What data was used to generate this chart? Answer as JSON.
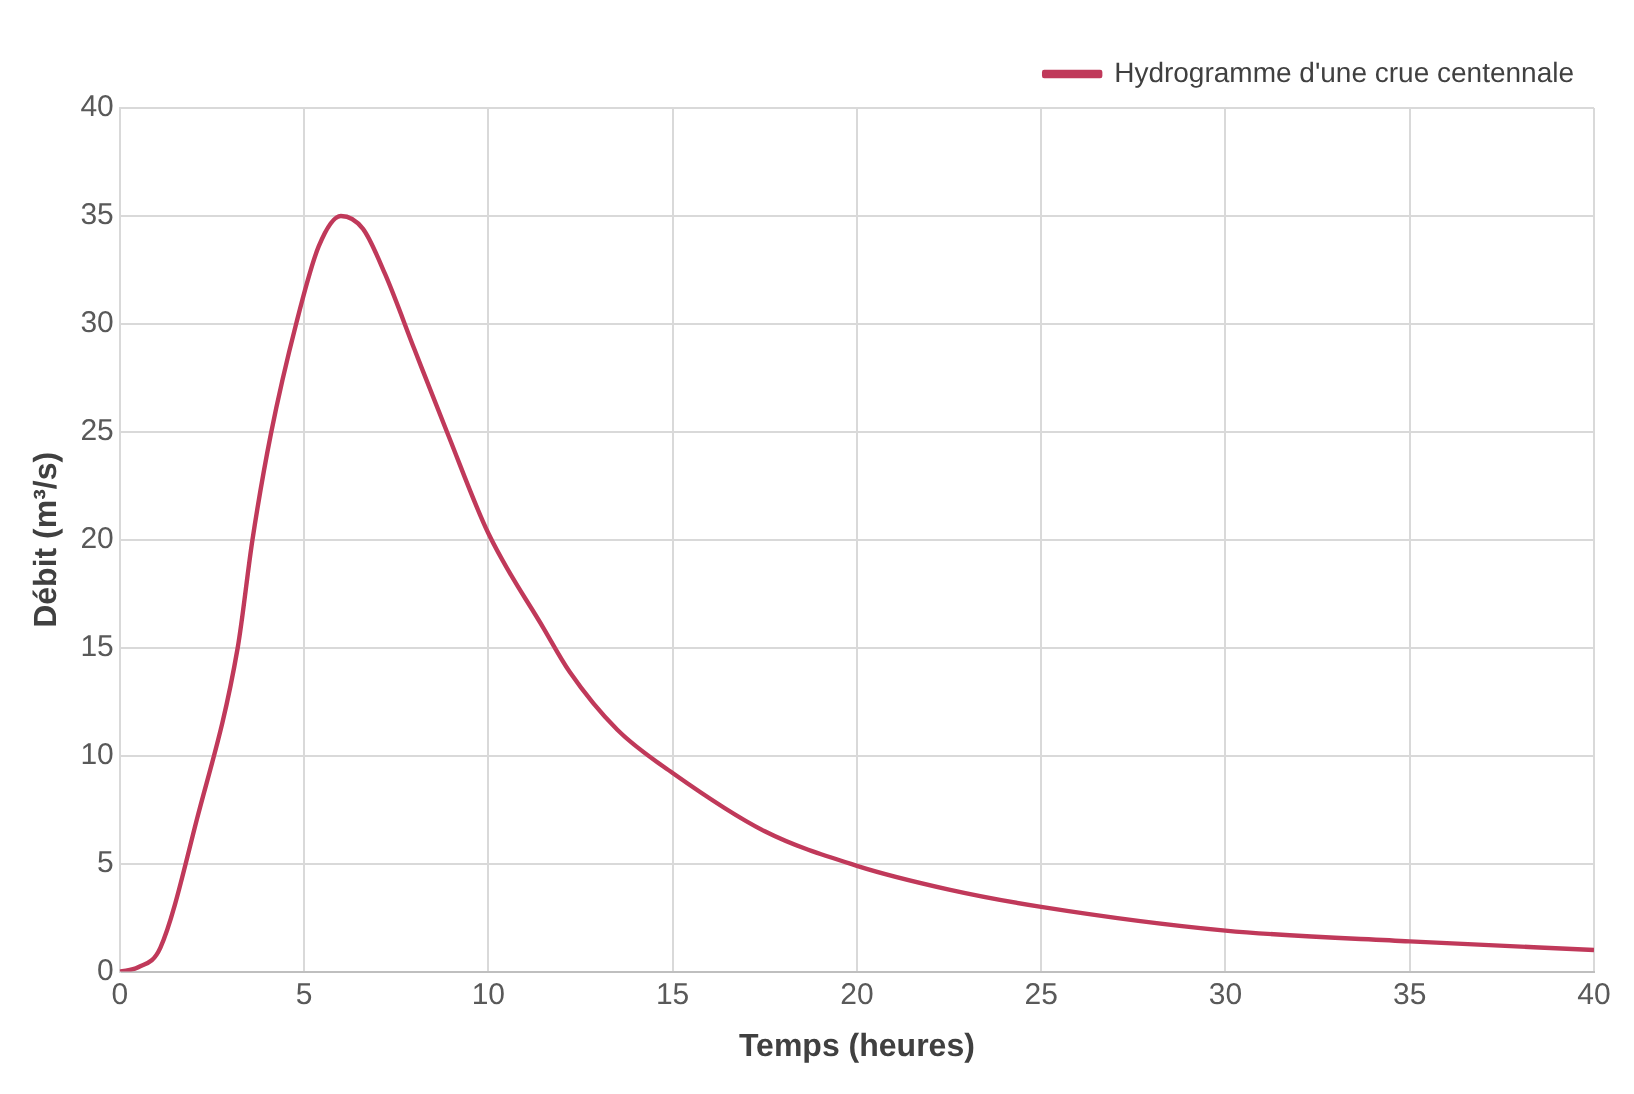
{
  "chart_data": {
    "type": "line",
    "xlabel": "Temps (heures)",
    "ylabel": "Débit (m³/s)",
    "series": [
      {
        "name": "Hydrogramme d'une crue centennale",
        "color": "#c0395a",
        "x": [
          0,
          0.5,
          1.1,
          2.1,
          3.2,
          3.6,
          4.1,
          4.8,
          5.4,
          6,
          6.6,
          7.2,
          8,
          8.9,
          10,
          11.5,
          12.2,
          13.5,
          15,
          17.5,
          20,
          22.5,
          25,
          30,
          35,
          40
        ],
        "values": [
          0,
          0.2,
          1.1,
          7.1,
          15,
          20,
          24.9,
          30.1,
          33.6,
          35,
          34.4,
          32.3,
          28.8,
          24.9,
          20.3,
          15.9,
          13.9,
          11.2,
          9.2,
          6.5,
          4.9,
          3.8,
          3,
          1.9,
          1.4,
          1
        ]
      }
    ],
    "xlim": [
      0,
      40
    ],
    "xticks": [
      0,
      5,
      10,
      15,
      20,
      25,
      30,
      35,
      40
    ],
    "ylim": [
      0,
      40
    ],
    "yticks": [
      0,
      5,
      10,
      15,
      20,
      25,
      30,
      35,
      40
    ],
    "grid": true,
    "legend": "top right",
    "marker": "none",
    "line_style": "solid"
  }
}
